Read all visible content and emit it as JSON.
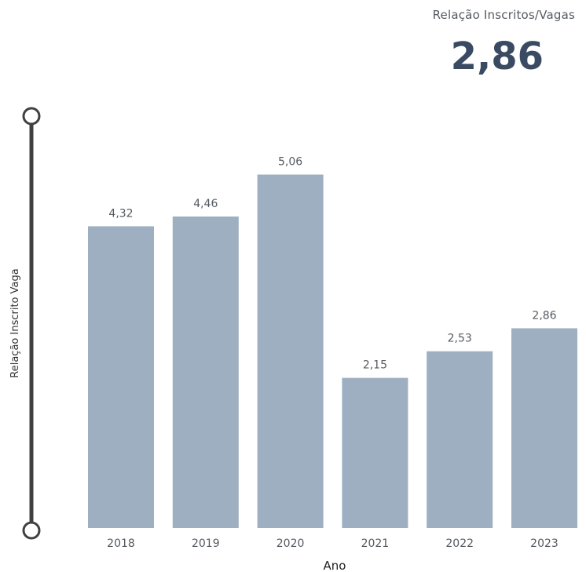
{
  "kpi": {
    "label": "Relação Inscritos/Vagas",
    "value": "2,86"
  },
  "chart_data": {
    "type": "bar",
    "categories": [
      "2018",
      "2019",
      "2020",
      "2021",
      "2022",
      "2023"
    ],
    "values": [
      4.32,
      4.46,
      5.06,
      2.15,
      2.53,
      2.86
    ],
    "data_labels": [
      "4,32",
      "4,46",
      "5,06",
      "2,15",
      "2,53",
      "2,86"
    ],
    "xlabel": "Ano",
    "ylabel": "Relação Inscrito Vaga",
    "ylim": [
      0,
      6.2
    ],
    "grid": false,
    "bar_color": "#9dafc0",
    "y_slider_color": "#404040"
  }
}
